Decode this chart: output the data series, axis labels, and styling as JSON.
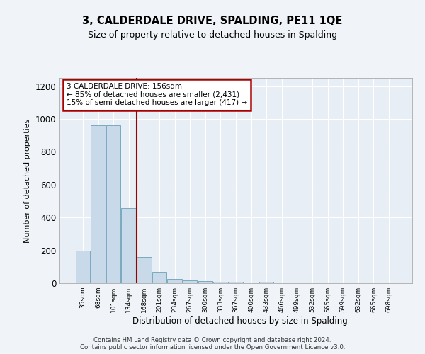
{
  "title": "3, CALDERDALE DRIVE, SPALDING, PE11 1QE",
  "subtitle": "Size of property relative to detached houses in Spalding",
  "xlabel": "Distribution of detached houses by size in Spalding",
  "ylabel": "Number of detached properties",
  "categories": [
    "35sqm",
    "68sqm",
    "101sqm",
    "134sqm",
    "168sqm",
    "201sqm",
    "234sqm",
    "267sqm",
    "300sqm",
    "333sqm",
    "367sqm",
    "400sqm",
    "433sqm",
    "466sqm",
    "499sqm",
    "532sqm",
    "565sqm",
    "599sqm",
    "632sqm",
    "665sqm",
    "698sqm"
  ],
  "values": [
    200,
    960,
    960,
    455,
    160,
    70,
    28,
    18,
    13,
    10,
    10,
    0,
    10,
    0,
    0,
    0,
    0,
    0,
    0,
    0,
    0
  ],
  "bar_color": "#c8daea",
  "bar_edge_color": "#7aaabf",
  "annotation_text": "3 CALDERDALE DRIVE: 156sqm\n← 85% of detached houses are smaller (2,431)\n15% of semi-detached houses are larger (417) →",
  "annotation_box_color": "#aa0000",
  "vline_x": 3.5,
  "vline_color": "#990000",
  "ylim": [
    0,
    1250
  ],
  "yticks": [
    0,
    200,
    400,
    600,
    800,
    1000,
    1200
  ],
  "bg_color": "#e8eef5",
  "grid_color": "#ffffff",
  "footer": "Contains HM Land Registry data © Crown copyright and database right 2024.\nContains public sector information licensed under the Open Government Licence v3.0."
}
